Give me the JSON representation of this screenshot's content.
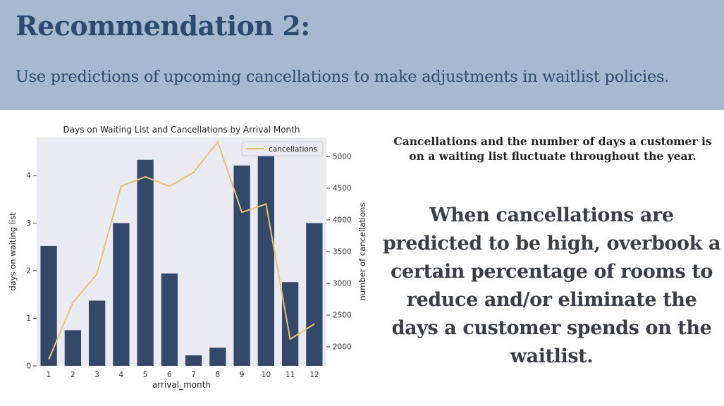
{
  "slide": {
    "title": "Recommendation 2:",
    "subtitle": "Use predictions of upcoming cancellations to make adjustments in waitlist policies.",
    "note": "Cancellations and the number of days a customer is on a waiting list fluctuate throughout the year.",
    "highlight": "When cancellations are predicted to be high, overbook a certain percentage of rooms to reduce and/or eliminate the days a customer spends on the waitlist."
  },
  "colors": {
    "header_bg": "#a7b9d1",
    "title_text": "#2e4a6e",
    "bar": "#34496a",
    "line": "#e8c070",
    "plot_bg": "#eaeaf2"
  },
  "chart_data": {
    "type": "bar",
    "title": "Days on Waiting List and Cancellations by Arrival Month",
    "xlabel": "arrival_month",
    "ylabel": "days on waiting list",
    "y2label": "number of cancellations",
    "categories": [
      "1",
      "2",
      "3",
      "4",
      "5",
      "6",
      "7",
      "8",
      "9",
      "10",
      "11",
      "12"
    ],
    "ylim": [
      0,
      4.8
    ],
    "yticks": [
      0,
      1,
      2,
      3,
      4
    ],
    "y2lim": [
      1700,
      5300
    ],
    "y2ticks": [
      2000,
      2500,
      3000,
      3500,
      4000,
      4500,
      5000
    ],
    "series": [
      {
        "type": "bar",
        "values": [
          2.52,
          0.75,
          1.37,
          3.0,
          4.33,
          1.94,
          0.22,
          0.38,
          4.21,
          4.6,
          1.76,
          3.0
        ]
      },
      {
        "type": "line",
        "name": "cancellations",
        "axis": "secondary",
        "values": [
          1800,
          2700,
          3150,
          4530,
          4680,
          4530,
          4750,
          5230,
          4120,
          4250,
          2120,
          2360
        ]
      }
    ],
    "legend": "top-right",
    "grid": false
  }
}
